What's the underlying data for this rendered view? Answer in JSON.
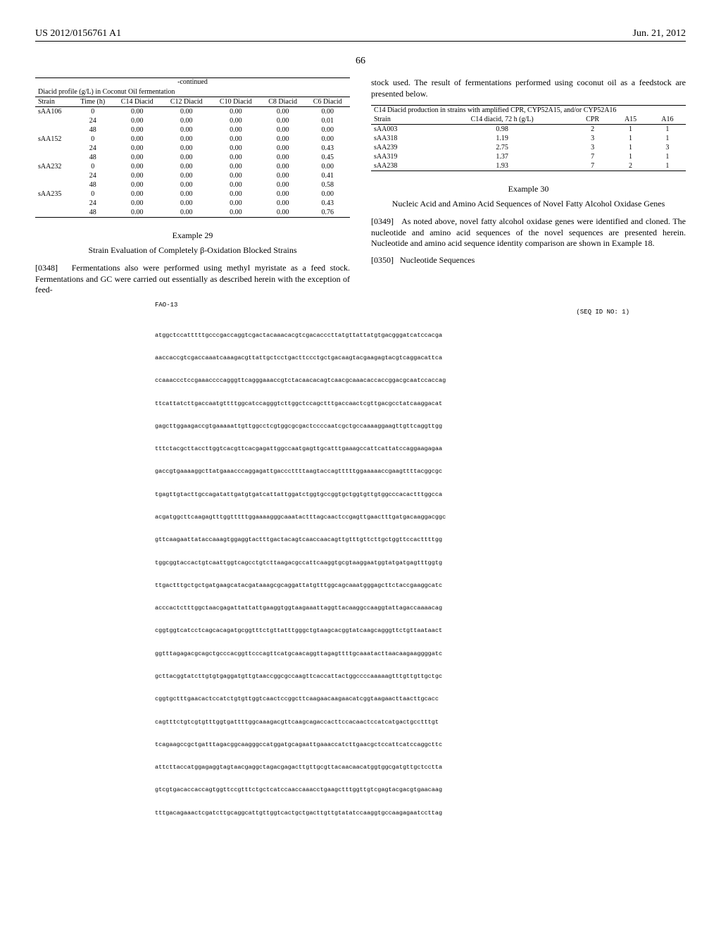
{
  "header": {
    "patent_number": "US 2012/0156761 A1",
    "date": "Jun. 21, 2012"
  },
  "page_number": "66",
  "table1": {
    "continued": "-continued",
    "caption": "Diacid profile (g/L) in Coconut Oil fermentation",
    "columns": [
      "Strain",
      "Time (h)",
      "C14 Diacid",
      "C12 Diacid",
      "C10 Diacid",
      "C8 Diacid",
      "C6 Diacid"
    ],
    "rows": [
      [
        "sAA106",
        "0",
        "0.00",
        "0.00",
        "0.00",
        "0.00",
        "0.00"
      ],
      [
        "",
        "24",
        "0.00",
        "0.00",
        "0.00",
        "0.00",
        "0.01"
      ],
      [
        "",
        "48",
        "0.00",
        "0.00",
        "0.00",
        "0.00",
        "0.00"
      ],
      [
        "sAA152",
        "0",
        "0.00",
        "0.00",
        "0.00",
        "0.00",
        "0.00"
      ],
      [
        "",
        "24",
        "0.00",
        "0.00",
        "0.00",
        "0.00",
        "0.43"
      ],
      [
        "",
        "48",
        "0.00",
        "0.00",
        "0.00",
        "0.00",
        "0.45"
      ],
      [
        "sAA232",
        "0",
        "0.00",
        "0.00",
        "0.00",
        "0.00",
        "0.00"
      ],
      [
        "",
        "24",
        "0.00",
        "0.00",
        "0.00",
        "0.00",
        "0.41"
      ],
      [
        "",
        "48",
        "0.00",
        "0.00",
        "0.00",
        "0.00",
        "0.58"
      ],
      [
        "sAA235",
        "0",
        "0.00",
        "0.00",
        "0.00",
        "0.00",
        "0.00"
      ],
      [
        "",
        "24",
        "0.00",
        "0.00",
        "0.00",
        "0.00",
        "0.43"
      ],
      [
        "",
        "48",
        "0.00",
        "0.00",
        "0.00",
        "0.00",
        "0.76"
      ]
    ]
  },
  "example29": {
    "title": "Example 29",
    "subtitle": "Strain Evaluation of Completely β-Oxidation Blocked Strains",
    "para_num": "[0348]",
    "para_text": "Fermentations also were performed using methyl myristate as a feed stock. Fermentations and GC were carried out essentially as described herein with the exception of feed-"
  },
  "right_intro": "stock used. The result of fermentations performed using coconut oil as a feedstock are presented below.",
  "table2": {
    "caption": "C14 Diacid production in strains with amplified CPR, CYP52A15, and/or CYP52A16",
    "columns": [
      "Strain",
      "C14 diacid, 72 h (g/L)",
      "CPR",
      "A15",
      "A16"
    ],
    "rows": [
      [
        "sAA003",
        "0.98",
        "2",
        "1",
        "1"
      ],
      [
        "sAA318",
        "1.19",
        "3",
        "1",
        "1"
      ],
      [
        "sAA239",
        "2.75",
        "3",
        "1",
        "3"
      ],
      [
        "sAA319",
        "1.37",
        "7",
        "1",
        "1"
      ],
      [
        "sAA238",
        "1.93",
        "7",
        "2",
        "1"
      ]
    ]
  },
  "example30": {
    "title": "Example 30",
    "subtitle": "Nucleic Acid and Amino Acid Sequences of Novel Fatty Alcohol Oxidase Genes",
    "para_num1": "[0349]",
    "para_text1": "As noted above, novel fatty alcohol oxidase genes were identified and cloned. The nucleotide and amino acid sequences of the novel sequences are presented herein. Nucleotide and amino acid sequence identity comparison are shown in Example 18.",
    "para_num2": "[0350]",
    "para_text2": "Nucleotide Sequences"
  },
  "sequence": {
    "label": "FAO-13",
    "seq_id": "(SEQ ID NO: 1)",
    "lines": [
      "atggctccatttttgcccgaccaggtcgactacaaacacgtcgacacccttatgttattatgtgacgggatcatccacga",
      "aaccaccgtcgaccaaatcaaagacgttattgctcctgacttccctgctgacaagtacgaagagtacgtcaggacattca",
      "ccaaaccctccgaaaccccagggttcagggaaaccgtctacaacacagtcaacgcaaacaccaccggacgcaatccaccag",
      "ttcattatcttgaccaatgttttggcatccagggtcttggctccagctttgaccaactcgttgacgcctatcaaggacat",
      "gagcttggaagaccgtgaaaaattgttggcctcgtggcgcgactccccaatcgctgccaaaaggaagttgttcaggttgg",
      "tttctacgcttaccttggtcacgttcacgagattggccaatgagttgcatttgaaagccattcattatccaggaagagaa",
      "gaccgtgaaaaggcttatgaaacccaggagattgacccttttaagtaccagtttttggaaaaaccgaagttttacggcgc",
      "tgagttgtacttgccagatattgatgtgatcattattggatctggtgccggtgctggtgttgtggcccacactttggcca",
      "acgatggcttcaagagtttggtttttggaaaagggcaaatactttagcaactccgagttgaactttgatgacaaggacggc",
      "gttcaagaattataccaaagtggaggtactttgactacagtcaaccaacagttgtttgttcttgctggttccacttttgg",
      "tggcggtaccactgtcaattggtcagcctgtcttaagacgccattcaaggtgcgtaaggaatggtatgatgagtttggtg",
      "ttgactttgctgctgatgaagcatacgataaagcgcaggattatgtttggcagcaaatgggagcttctaccgaaggcatc",
      "acccactctttggctaacgagattattattgaaggtggtaagaaattaggttacaaggccaaggtattagaccaaaacag",
      "cggtggtcatcctcagcacagatgcggtttctgttatttgggctgtaagcacggtatcaagcagggttctgttaataact",
      "ggtttagagacgcagctgcccacggttcccagttcatgcaacaggttagagttttgcaaatacttaacaagaaggggatc",
      "gcttacggtatcttgtgtgaggatgttgtaaccggcgccaagttcaccattactggccccaaaaagtttgttgttgctgc",
      "cggtgctttgaacactccatctgtgttggtcaactccggcttcaagaacaagaacatcggtaagaacttaacttgcacc",
      "cagtttctgtcgtgtttggtgattttggcaaagacgttcaagcagaccacttccacaactccatcatgactgcctttgt",
      "tcagaagccgctgatttagacggcaagggccatggatgcagaattgaaaccatcttgaacgctccattcatccaggcttc",
      "attcttaccatggagaggtagtaacgaggctagacgagacttgttgcgttacaacaacatggtggcgatgttgctcctta",
      "gtcgtgacaccaccagtggttccgtttctgctcatccaaccaaacctgaagctttggttgtcgagtacgacgtgaacaag",
      "tttgacagaaactcgatcttgcaggcattgttggtcactgctgacttgttgtatatccaaggtgccaagagaatccttag"
    ]
  }
}
